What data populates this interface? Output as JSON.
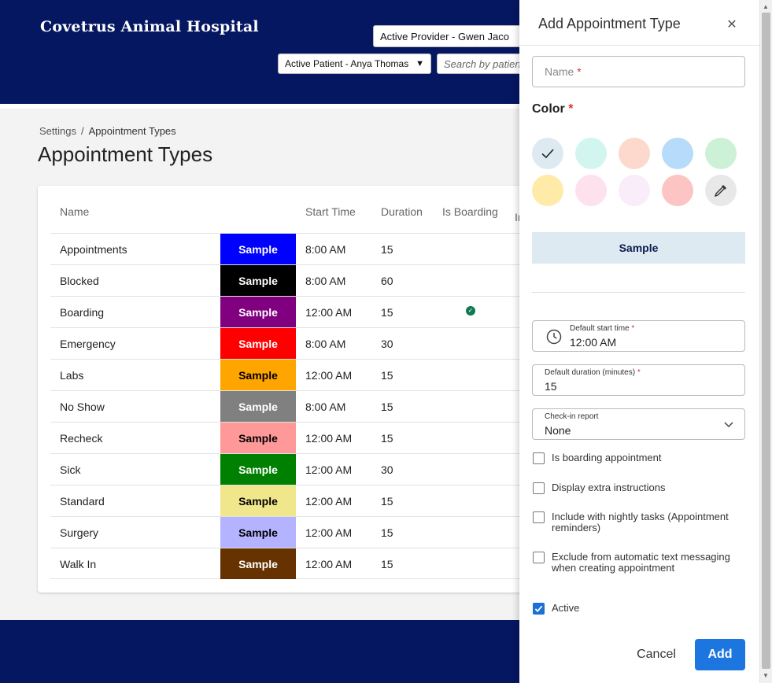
{
  "header": {
    "title": "Covetrus Animal Hospital",
    "provider_select": "Active Provider - Gwen Jaco",
    "patient_select": "Active Patient - Anya Thomas",
    "search_placeholder": "Search by patien"
  },
  "breadcrumb": {
    "root": "Settings",
    "separator": "/",
    "current": "Appointment Types"
  },
  "page_title": "Appointment Types",
  "table": {
    "columns": {
      "name": "Name",
      "start_time": "Start Time",
      "duration": "Duration",
      "is_boarding": "Is Boarding",
      "extra": "In"
    },
    "sample_label": "Sample",
    "rows": [
      {
        "name": "Appointments",
        "color": "#0000ff",
        "text_color": "#ffffff",
        "start": "8:00 AM",
        "duration": "15",
        "boarding": false
      },
      {
        "name": "Blocked",
        "color": "#000000",
        "text_color": "#ffffff",
        "start": "8:00 AM",
        "duration": "60",
        "boarding": false
      },
      {
        "name": "Boarding",
        "color": "#800080",
        "text_color": "#ffffff",
        "start": "12:00 AM",
        "duration": "15",
        "boarding": true
      },
      {
        "name": "Emergency",
        "color": "#ff0000",
        "text_color": "#ffffff",
        "start": "8:00 AM",
        "duration": "30",
        "boarding": false
      },
      {
        "name": "Labs",
        "color": "#ffa500",
        "text_color": "#000000",
        "start": "12:00 AM",
        "duration": "15",
        "boarding": false
      },
      {
        "name": "No Show",
        "color": "#808080",
        "text_color": "#ffffff",
        "start": "8:00 AM",
        "duration": "15",
        "boarding": false
      },
      {
        "name": "Recheck",
        "color": "#ff9999",
        "text_color": "#000000",
        "start": "12:00 AM",
        "duration": "15",
        "boarding": false
      },
      {
        "name": "Sick",
        "color": "#008000",
        "text_color": "#ffffff",
        "start": "12:00 AM",
        "duration": "30",
        "boarding": false
      },
      {
        "name": "Standard",
        "color": "#f0e68c",
        "text_color": "#000000",
        "start": "12:00 AM",
        "duration": "15",
        "boarding": false
      },
      {
        "name": "Surgery",
        "color": "#b3b3ff",
        "text_color": "#000000",
        "start": "12:00 AM",
        "duration": "15",
        "boarding": false
      },
      {
        "name": "Walk In",
        "color": "#663300",
        "text_color": "#ffffff",
        "start": "12:00 AM",
        "duration": "15",
        "boarding": false
      }
    ]
  },
  "drawer": {
    "title": "Add Appointment Type",
    "name_label": "Name",
    "required_mark": "*",
    "color_label": "Color",
    "swatches": [
      {
        "color": "#ddeaf1",
        "selected": true
      },
      {
        "color": "#d2f5ef",
        "selected": false
      },
      {
        "color": "#fdd8cc",
        "selected": false
      },
      {
        "color": "#b6dbfb",
        "selected": false
      },
      {
        "color": "#ccf1d6",
        "selected": false
      },
      {
        "color": "#ffeaa8",
        "selected": false
      },
      {
        "color": "#fde2ee",
        "selected": false
      },
      {
        "color": "#f9edfa",
        "selected": false
      },
      {
        "color": "#fdc4c4",
        "selected": false
      },
      {
        "color": "#e8e8e8",
        "selected": false,
        "icon": "eyedropper-icon"
      }
    ],
    "preview_label": "Sample",
    "preview_color": "#ddeaf1",
    "start_time": {
      "label": "Default start time",
      "value": "12:00 AM"
    },
    "duration": {
      "label": "Default duration (minutes)",
      "value": "15"
    },
    "checkin_report": {
      "label": "Check-in report",
      "value": "None"
    },
    "checkboxes": [
      {
        "name": "boarding-checkbox",
        "label": "Is boarding appointment",
        "checked": false
      },
      {
        "name": "extra-instructions-checkbox",
        "label": "Display extra instructions",
        "checked": false
      },
      {
        "name": "nightly-tasks-checkbox",
        "label": "Include with nightly tasks (Appointment reminders)",
        "checked": false
      },
      {
        "name": "exclude-texting-checkbox",
        "label": "Exclude from automatic text messaging when creating appointment",
        "checked": false
      },
      {
        "name": "active-checkbox",
        "label": "Active",
        "checked": true
      }
    ],
    "cancel_label": "Cancel",
    "add_label": "Add",
    "accent_color": "#1d76e0"
  }
}
